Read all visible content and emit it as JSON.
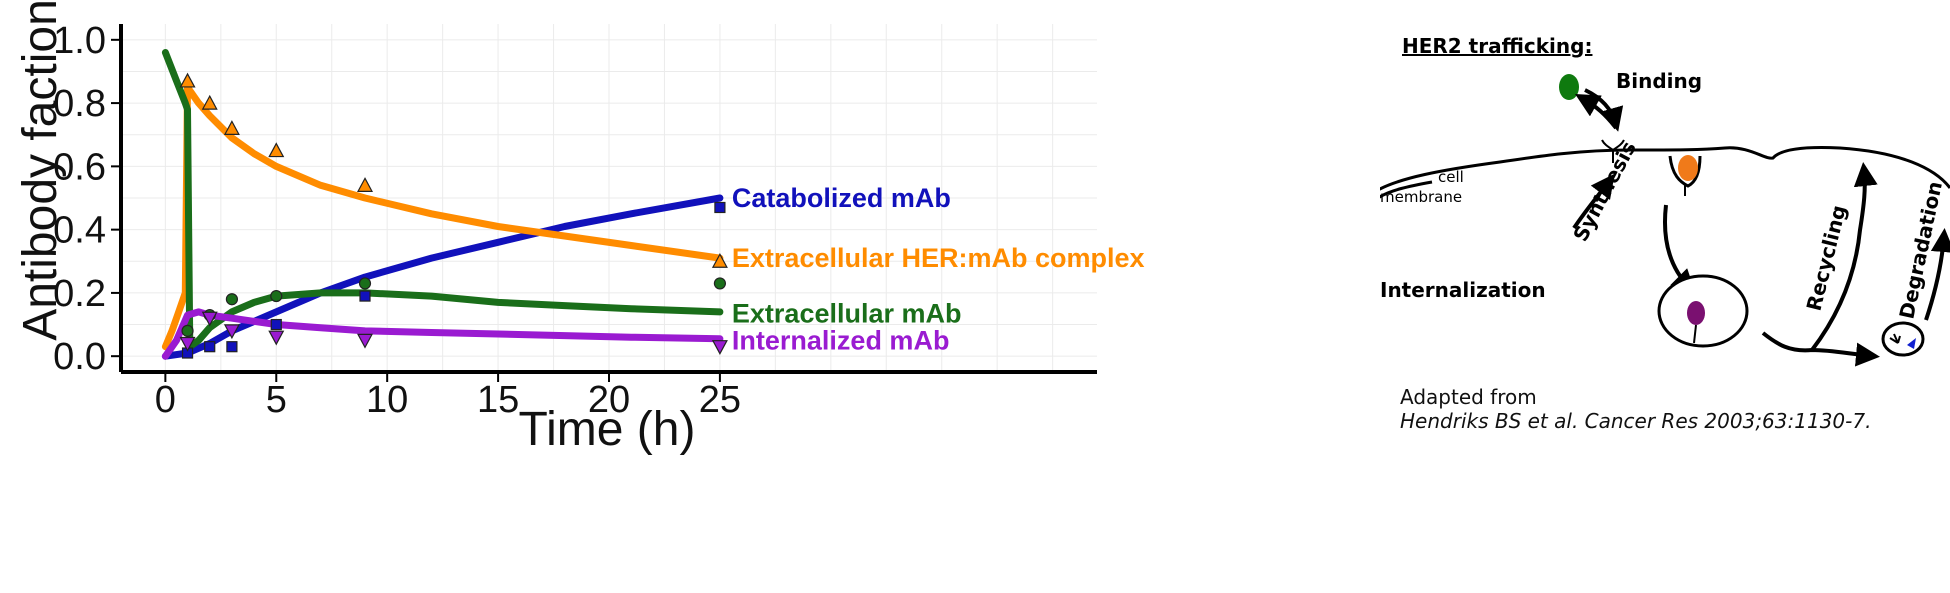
{
  "chart_data": {
    "type": "line",
    "xlabel": "Time (h)",
    "ylabel": "Antibody faction",
    "xlim": [
      -2,
      42
    ],
    "ylim": [
      -0.05,
      1.05
    ],
    "xticks": [
      0,
      5,
      10,
      15,
      20,
      25
    ],
    "yticks": [
      0.0,
      0.2,
      0.4,
      0.6,
      0.8,
      1.0
    ],
    "grid": true,
    "series": [
      {
        "name": "Catabolized mAb",
        "color": "#1111bb",
        "marker": "square",
        "line_x": [
          0,
          1,
          2,
          3,
          5,
          7,
          9,
          12,
          15,
          18,
          21,
          25
        ],
        "line_y": [
          0.0,
          0.01,
          0.04,
          0.08,
          0.14,
          0.2,
          0.25,
          0.31,
          0.36,
          0.41,
          0.45,
          0.5
        ],
        "points_x": [
          1,
          2,
          3,
          5,
          9,
          25
        ],
        "points_y": [
          0.01,
          0.03,
          0.03,
          0.1,
          0.19,
          0.47
        ]
      },
      {
        "name": "Extracellular HER:mAb complex",
        "color": "#ff8c00",
        "marker": "triangle-up",
        "line_x": [
          0,
          0.3,
          0.6,
          0.9,
          1,
          1.5,
          2,
          3,
          4,
          5,
          7,
          9,
          12,
          15,
          18,
          21,
          25
        ],
        "line_y": [
          0.03,
          0.08,
          0.14,
          0.2,
          0.85,
          0.8,
          0.76,
          0.69,
          0.64,
          0.6,
          0.54,
          0.5,
          0.45,
          0.41,
          0.38,
          0.35,
          0.31
        ],
        "points_x": [
          1,
          2,
          3,
          5,
          9,
          25
        ],
        "points_y": [
          0.87,
          0.8,
          0.72,
          0.65,
          0.54,
          0.3
        ]
      },
      {
        "name": "Extracellular mAb",
        "color": "#1a6e1a",
        "marker": "circle",
        "line_x": [
          0,
          0.5,
          0.9,
          1,
          1.1,
          1.5,
          2,
          3,
          4,
          5,
          7,
          9,
          12,
          15,
          18,
          21,
          25
        ],
        "line_y": [
          0.96,
          0.87,
          0.8,
          0.78,
          0.03,
          0.05,
          0.09,
          0.14,
          0.17,
          0.19,
          0.2,
          0.2,
          0.19,
          0.17,
          0.16,
          0.15,
          0.14
        ],
        "points_x": [
          1,
          2,
          3,
          5,
          9,
          25
        ],
        "points_y": [
          0.08,
          0.13,
          0.18,
          0.19,
          0.23,
          0.23
        ]
      },
      {
        "name": "Internalized mAb",
        "color": "#9a1bd1",
        "marker": "triangle-down",
        "line_x": [
          0,
          0.5,
          1,
          1.5,
          2,
          3,
          5,
          7,
          9,
          12,
          15,
          18,
          21,
          25
        ],
        "line_y": [
          0.0,
          0.05,
          0.13,
          0.14,
          0.13,
          0.12,
          0.1,
          0.09,
          0.08,
          0.075,
          0.07,
          0.065,
          0.06,
          0.055
        ],
        "points_x": [
          1,
          2,
          3,
          5,
          9,
          25
        ],
        "points_y": [
          0.04,
          0.12,
          0.08,
          0.06,
          0.05,
          0.03
        ]
      }
    ]
  },
  "diagram": {
    "title": "HER2 trafficking:",
    "binding": "Binding",
    "cell": "cell",
    "membrane": "membrane",
    "synthesis": "Synthesis",
    "internalization": "Internalization",
    "recycling": "Recycling",
    "degradation": "Degradation",
    "colors": {
      "green": "#0f7a0f",
      "orange": "#f07a1a",
      "purple": "#7a1070",
      "blue": "#1020d0"
    }
  },
  "credit": {
    "line1": "Adapted from",
    "line2": "Hendriks BS et al. Cancer Res 2003;63:1130-7."
  }
}
